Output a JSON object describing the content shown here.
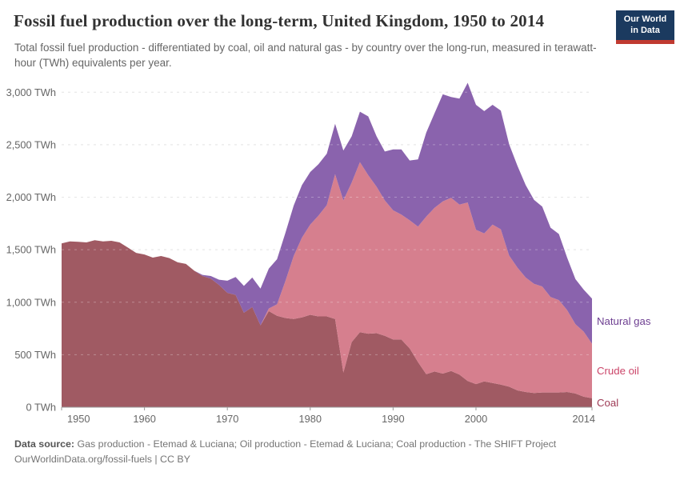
{
  "header": {
    "title": "Fossil fuel production over the long-term, United Kingdom, 1950 to 2014",
    "subtitle": "Total fossil fuel production - differentiated by coal, oil and natural gas - by country over the long-run, measured in terawatt-hour (TWh) equivalents per year.",
    "logo": {
      "line1": "Our World",
      "line2": "in Data",
      "bg": "#1b3a5f",
      "accent": "#c03a31"
    }
  },
  "chart_data": {
    "type": "area",
    "stacked": true,
    "title": "Fossil fuel production over the long-term, United Kingdom, 1950 to 2014",
    "unit": "TWh",
    "xlabel": "",
    "ylabel": "TWh",
    "ylim": [
      0,
      3000
    ],
    "grid": "dashed",
    "legend_position": "right-edge-labels",
    "x": [
      1950,
      1951,
      1952,
      1953,
      1954,
      1955,
      1956,
      1957,
      1958,
      1959,
      1960,
      1961,
      1962,
      1963,
      1964,
      1965,
      1966,
      1967,
      1968,
      1969,
      1970,
      1971,
      1972,
      1973,
      1974,
      1975,
      1976,
      1977,
      1978,
      1979,
      1980,
      1981,
      1982,
      1983,
      1984,
      1985,
      1986,
      1987,
      1988,
      1989,
      1990,
      1991,
      1992,
      1993,
      1994,
      1995,
      1996,
      1997,
      1998,
      1999,
      2000,
      2001,
      2002,
      2003,
      2004,
      2005,
      2006,
      2007,
      2008,
      2009,
      2010,
      2011,
      2012,
      2013,
      2014
    ],
    "series": [
      {
        "name": "Coal",
        "color": "#a05a63",
        "label_color": "#9e3a55",
        "values": [
          1560,
          1580,
          1575,
          1570,
          1590,
          1580,
          1585,
          1570,
          1520,
          1470,
          1455,
          1425,
          1440,
          1420,
          1380,
          1365,
          1300,
          1250,
          1225,
          1165,
          1090,
          1070,
          900,
          955,
          780,
          915,
          870,
          850,
          840,
          855,
          880,
          865,
          865,
          840,
          330,
          620,
          715,
          700,
          705,
          680,
          645,
          645,
          560,
          430,
          315,
          340,
          320,
          345,
          310,
          250,
          220,
          245,
          230,
          215,
          195,
          160,
          145,
          135,
          140,
          140,
          140,
          145,
          130,
          100,
          85
        ]
      },
      {
        "name": "Crude oil",
        "color": "#d67f8e",
        "label_color": "#cb4569",
        "values": [
          0,
          0,
          0,
          0,
          0,
          0,
          0,
          0,
          0,
          0,
          0,
          0,
          0,
          0,
          0,
          0,
          0,
          0,
          0,
          0,
          0,
          0,
          0,
          0,
          0,
          25,
          110,
          350,
          600,
          760,
          860,
          960,
          1060,
          1380,
          1640,
          1520,
          1620,
          1510,
          1395,
          1290,
          1230,
          1190,
          1220,
          1290,
          1500,
          1560,
          1640,
          1650,
          1620,
          1700,
          1470,
          1410,
          1510,
          1480,
          1250,
          1170,
          1090,
          1040,
          1010,
          910,
          880,
          780,
          660,
          620,
          520
        ]
      },
      {
        "name": "Natural gas",
        "color": "#8a63ad",
        "label_color": "#6d3e91",
        "values": [
          0,
          0,
          0,
          0,
          0,
          0,
          0,
          0,
          0,
          0,
          0,
          0,
          0,
          0,
          0,
          0,
          0,
          10,
          25,
          50,
          115,
          170,
          255,
          280,
          350,
          380,
          430,
          460,
          480,
          500,
          500,
          490,
          490,
          480,
          475,
          440,
          480,
          560,
          480,
          465,
          580,
          620,
          570,
          640,
          800,
          900,
          1020,
          960,
          1010,
          1140,
          1190,
          1165,
          1140,
          1130,
          1060,
          970,
          880,
          800,
          760,
          660,
          630,
          500,
          430,
          400,
          430
        ]
      }
    ],
    "yticks": [
      {
        "value": 0,
        "label": "0 TWh"
      },
      {
        "value": 500,
        "label": "500 TWh"
      },
      {
        "value": 1000,
        "label": "1,000 TWh"
      },
      {
        "value": 1500,
        "label": "1,500 TWh"
      },
      {
        "value": 2000,
        "label": "2,000 TWh"
      },
      {
        "value": 2500,
        "label": "2,500 TWh"
      },
      {
        "value": 3000,
        "label": "3,000 TWh"
      }
    ],
    "xticks": [
      {
        "year": 1950,
        "label": "1950"
      },
      {
        "year": 1960,
        "label": "1960"
      },
      {
        "year": 1970,
        "label": "1970"
      },
      {
        "year": 1980,
        "label": "1980"
      },
      {
        "year": 1990,
        "label": "1990"
      },
      {
        "year": 2000,
        "label": "2000"
      },
      {
        "year": 2014,
        "label": "2014"
      }
    ]
  },
  "footer": {
    "label": "Data source:",
    "sources": "Gas production - Etemad & Luciana; Oil production - Etemad & Luciana; Coal production - The SHIFT Project",
    "url": "OurWorldinData.org/fossil-fuels",
    "license": " | CC BY"
  }
}
